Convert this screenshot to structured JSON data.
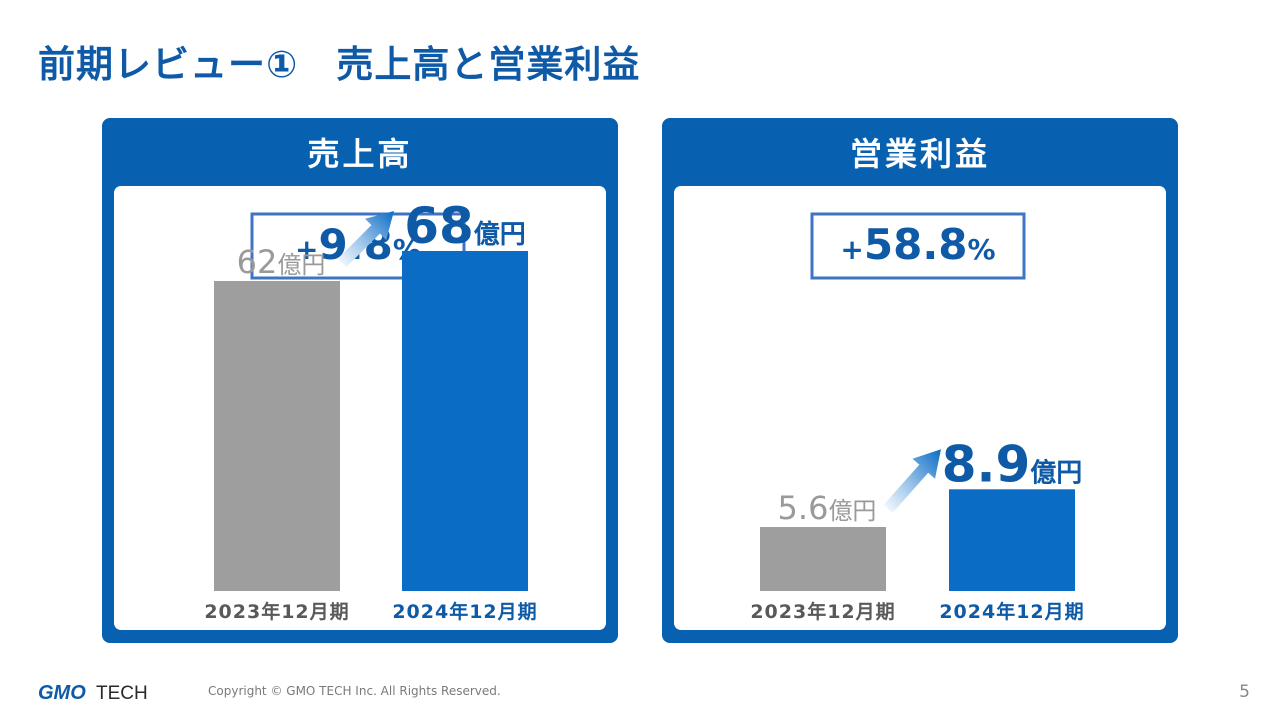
{
  "page": {
    "title": "前期レビュー①　売上高と営業利益",
    "copyright": "Copyright © GMO TECH Inc. All Rights Reserved.",
    "page_number": "5",
    "logo": {
      "text_gmo": "GMO",
      "text_tech": "TECH"
    }
  },
  "colors": {
    "brand_blue": "#0860b0",
    "bar_prev": "#9e9e9e",
    "bar_curr": "#0a6cc4",
    "label_prev": "#9a9a9a",
    "label_curr": "#0e5aa7",
    "cat_prev": "#595959"
  },
  "chart_data": [
    {
      "type": "bar",
      "title": "売上高",
      "growth": {
        "sign": "+",
        "value": "9.8",
        "unit": "%"
      },
      "categories": [
        "2023年12月期",
        "2024年12月期"
      ],
      "values": [
        62,
        68
      ],
      "value_labels": [
        "62",
        "68"
      ],
      "unit": "億円",
      "ylim": [
        0,
        72
      ]
    },
    {
      "type": "bar",
      "title": "営業利益",
      "growth": {
        "sign": "+",
        "value": "58.8",
        "unit": "%"
      },
      "categories": [
        "2023年12月期",
        "2024年12月期"
      ],
      "values": [
        5.6,
        8.9
      ],
      "value_labels": [
        "5.6",
        "8.9"
      ],
      "unit": "億円",
      "ylim": [
        0,
        31.5
      ]
    }
  ]
}
